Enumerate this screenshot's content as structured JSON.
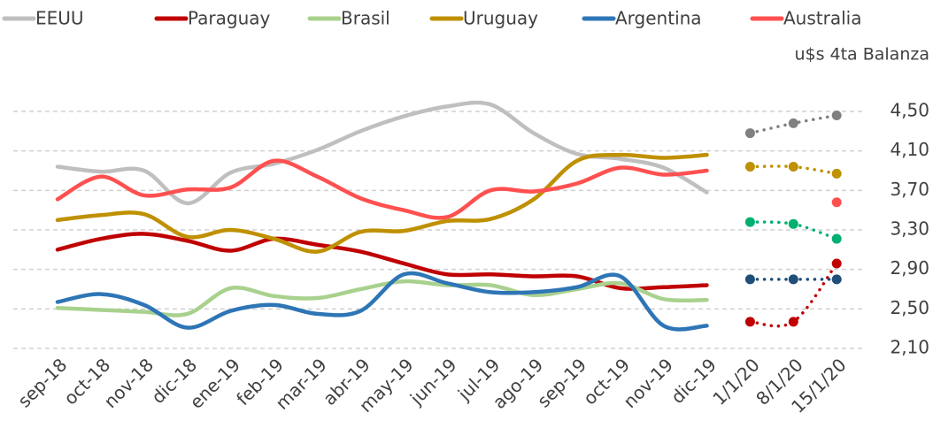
{
  "chart_data": {
    "type": "line",
    "y_label": "u$s 4ta Balanza",
    "categories": [
      "sep-18",
      "oct-18",
      "nov-18",
      "dic-18",
      "ene-19",
      "feb-19",
      "mar-19",
      "abr-19",
      "may-19",
      "jun-19",
      "jul-19",
      "ago-19",
      "sep-19",
      "oct-19",
      "nov-19",
      "dic-19",
      "1/1/20",
      "8/1/20",
      "15/1/20"
    ],
    "series": [
      {
        "name": "EEUU",
        "color": "#bfbfbf",
        "marker_color": "#808080",
        "values": [
          3.94,
          3.89,
          3.9,
          3.57,
          3.88,
          3.97,
          4.11,
          4.3,
          4.45,
          4.55,
          4.57,
          4.28,
          4.07,
          4.02,
          3.93,
          3.68,
          4.28,
          4.38,
          4.46
        ]
      },
      {
        "name": "Paraguay",
        "color": "#c00000",
        "marker_color": "#c00000",
        "values": [
          3.1,
          3.21,
          3.26,
          3.19,
          3.09,
          3.21,
          3.15,
          3.08,
          2.96,
          2.85,
          2.85,
          2.83,
          2.83,
          2.71,
          2.72,
          2.74,
          2.37,
          2.37,
          2.96
        ]
      },
      {
        "name": "Brasil",
        "color": "#a9d18e",
        "marker_color": "#00b070",
        "values": [
          2.51,
          2.49,
          2.47,
          2.45,
          2.71,
          2.63,
          2.61,
          2.7,
          2.78,
          2.74,
          2.74,
          2.64,
          2.7,
          2.76,
          2.6,
          2.59,
          3.38,
          3.36,
          3.21
        ]
      },
      {
        "name": "Uruguay",
        "color": "#bf9000",
        "marker_color": "#bf9000",
        "values": [
          3.4,
          3.45,
          3.46,
          3.23,
          3.3,
          3.21,
          3.08,
          3.28,
          3.29,
          3.39,
          3.41,
          3.61,
          4.0,
          4.06,
          4.03,
          4.06,
          3.94,
          3.94,
          3.87
        ]
      },
      {
        "name": "Argentina",
        "color": "#2e75b6",
        "marker_color": "#1f4e79",
        "values": [
          2.57,
          2.65,
          2.54,
          2.31,
          2.48,
          2.54,
          2.45,
          2.48,
          2.85,
          2.76,
          2.67,
          2.67,
          2.72,
          2.83,
          2.33,
          2.33,
          2.8,
          2.8,
          2.8
        ]
      },
      {
        "name": "Australia",
        "color": "#ff5050",
        "marker_color": "#ff5050",
        "values": [
          3.61,
          3.84,
          3.65,
          3.71,
          3.73,
          4.0,
          3.84,
          3.62,
          3.5,
          3.43,
          3.7,
          3.69,
          3.77,
          3.93,
          3.86,
          3.9,
          null,
          null,
          3.58
        ]
      }
    ],
    "ylim": [
      2.1,
      4.5
    ],
    "yticks": [
      {
        "value": 2.1,
        "label": "2,10"
      },
      {
        "value": 2.5,
        "label": "2,50"
      },
      {
        "value": 2.9,
        "label": "2,90"
      },
      {
        "value": 3.3,
        "label": "3,30"
      },
      {
        "value": 3.7,
        "label": "3,70"
      },
      {
        "value": 4.1,
        "label": "4,10"
      },
      {
        "value": 4.5,
        "label": "4,50"
      }
    ],
    "grid": true,
    "legend": "top",
    "monthly_points": 16
  }
}
